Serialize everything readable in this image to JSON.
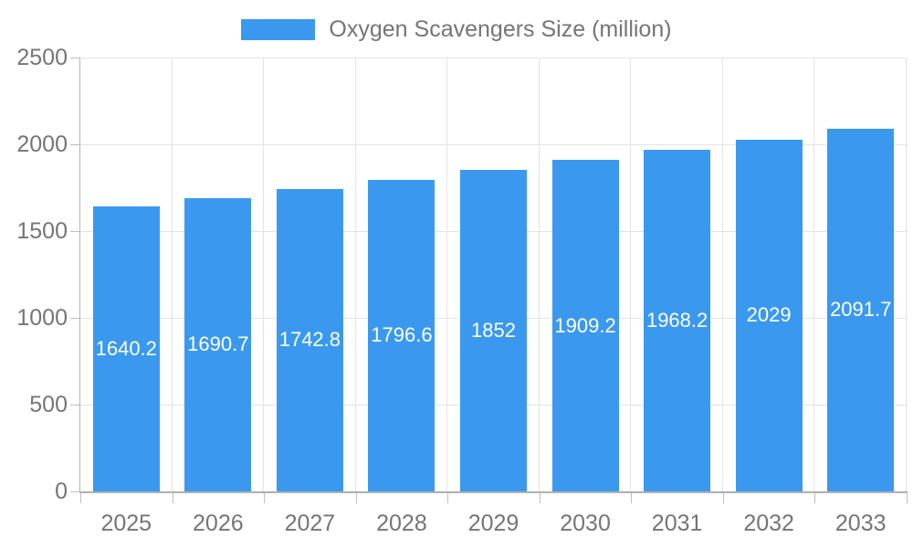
{
  "chart_data": {
    "type": "bar",
    "title": "Oxygen Scavengers Size (million)",
    "categories": [
      "2025",
      "2026",
      "2027",
      "2028",
      "2029",
      "2030",
      "2031",
      "2032",
      "2033"
    ],
    "values": [
      1640.2,
      1690.7,
      1742.8,
      1796.6,
      1852,
      1909.2,
      1968.2,
      2029,
      2091.7
    ],
    "value_labels": [
      "1640.2",
      "1690.7",
      "1742.8",
      "1796.6",
      "1852",
      "1909.2",
      "1968.2",
      "2029",
      "2091.7"
    ],
    "xlabel": "",
    "ylabel": "",
    "ylim": [
      0,
      2500
    ],
    "ytick_interval": 500,
    "yticks": [
      "0",
      "500",
      "1000",
      "1500",
      "2000",
      "2500"
    ],
    "grid": true,
    "legend_position": "top-center",
    "bar_color": "#3A99EE",
    "bar_label_color": "#ffffff",
    "axis_text_color": "#757575",
    "gridline_color": "#e3e3e3",
    "axis_line_color": "#b0b0b0"
  }
}
